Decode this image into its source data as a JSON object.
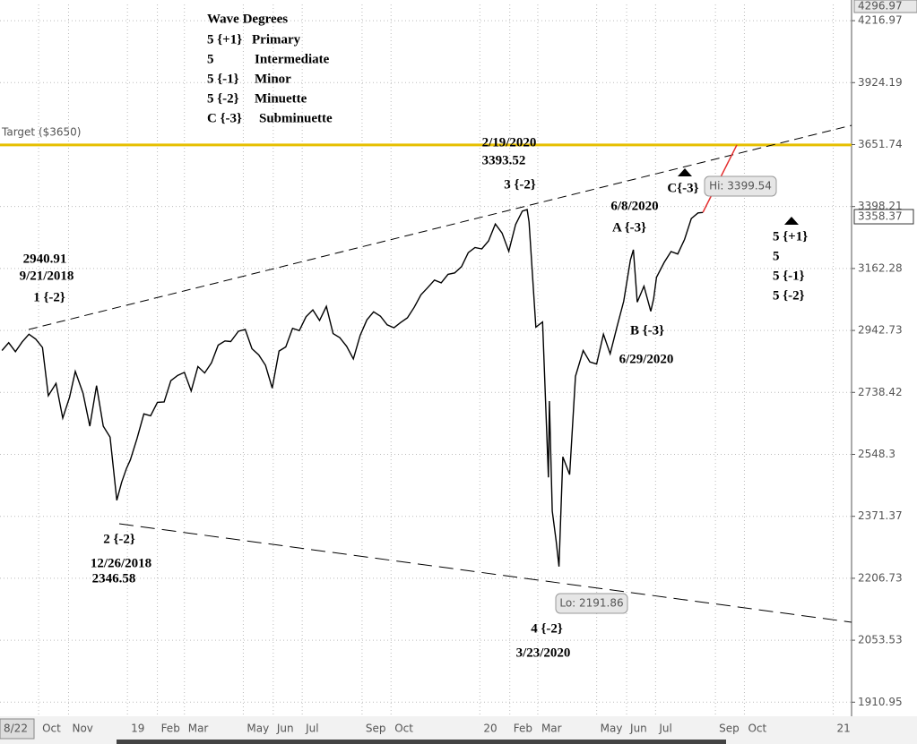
{
  "chart_data": {
    "type": "line",
    "color": "#000000",
    "log_scale": true,
    "grid": true,
    "xlim": [
      "2018-08-22",
      "2021-01-20"
    ],
    "xticks": [
      {
        "value": "2018-08-22",
        "label": "8/22"
      },
      {
        "value": "2018-10-01",
        "label": "Oct"
      },
      {
        "value": "2018-11-01",
        "label": "Nov"
      },
      {
        "value": "2019-01-01",
        "label": "19"
      },
      {
        "value": "2019-02-01",
        "label": "Feb"
      },
      {
        "value": "2019-03-01",
        "label": "Mar"
      },
      {
        "value": "2019-05-01",
        "label": "May"
      },
      {
        "value": "2019-06-01",
        "label": "Jun"
      },
      {
        "value": "2019-07-01",
        "label": "Jul"
      },
      {
        "value": "2019-09-01",
        "label": "Sep"
      },
      {
        "value": "2019-10-01",
        "label": "Oct"
      },
      {
        "value": "2020-01-01",
        "label": "20"
      },
      {
        "value": "2020-02-01",
        "label": "Feb"
      },
      {
        "value": "2020-03-01",
        "label": "Mar"
      },
      {
        "value": "2020-05-01",
        "label": "May"
      },
      {
        "value": "2020-06-01",
        "label": "Jun"
      },
      {
        "value": "2020-07-01",
        "label": "Jul"
      },
      {
        "value": "2020-09-01",
        "label": "Sep"
      },
      {
        "value": "2020-10-01",
        "label": "Oct"
      },
      {
        "value": "2021-01-01",
        "label": "21"
      }
    ],
    "ylim": [
      1880,
      4296.97
    ],
    "yticks": [
      1910.95,
      2053.53,
      2206.73,
      2371.37,
      2548.3,
      2738.42,
      2942.73,
      3162.28,
      3398.21,
      3651.74,
      3924.19,
      4216.97
    ],
    "last_price": 3358.37,
    "target": {
      "label": "Target ($3650)",
      "value": 3650,
      "color": "#e6bf00"
    },
    "x": [
      "2018-08-24",
      "2018-08-31",
      "2018-09-07",
      "2018-09-14",
      "2018-09-21",
      "2018-09-28",
      "2018-10-05",
      "2018-10-11",
      "2018-10-19",
      "2018-10-26",
      "2018-11-02",
      "2018-11-08",
      "2018-11-16",
      "2018-11-23",
      "2018-11-30",
      "2018-12-07",
      "2018-12-14",
      "2018-12-21",
      "2018-12-26",
      "2018-12-31",
      "2019-01-04",
      "2019-01-11",
      "2019-01-18",
      "2019-01-25",
      "2019-02-01",
      "2019-02-08",
      "2019-02-15",
      "2019-02-22",
      "2019-03-01",
      "2019-03-08",
      "2019-03-15",
      "2019-03-22",
      "2019-03-29",
      "2019-04-05",
      "2019-04-12",
      "2019-04-18",
      "2019-04-26",
      "2019-05-03",
      "2019-05-10",
      "2019-05-17",
      "2019-05-24",
      "2019-05-31",
      "2019-06-07",
      "2019-06-14",
      "2019-06-21",
      "2019-06-28",
      "2019-07-05",
      "2019-07-12",
      "2019-07-19",
      "2019-07-26",
      "2019-08-02",
      "2019-08-09",
      "2019-08-16",
      "2019-08-23",
      "2019-08-30",
      "2019-09-06",
      "2019-09-13",
      "2019-09-20",
      "2019-09-27",
      "2019-10-04",
      "2019-10-11",
      "2019-10-18",
      "2019-10-25",
      "2019-11-01",
      "2019-11-08",
      "2019-11-15",
      "2019-11-22",
      "2019-11-29",
      "2019-12-06",
      "2019-12-13",
      "2019-12-20",
      "2019-12-27",
      "2020-01-03",
      "2020-01-10",
      "2020-01-17",
      "2020-01-24",
      "2020-01-31",
      "2020-02-07",
      "2020-02-14",
      "2020-02-19",
      "2020-02-21",
      "2020-02-28",
      "2020-03-06",
      "2020-03-12",
      "2020-03-13",
      "2020-03-16",
      "2020-03-20",
      "2020-03-23",
      "2020-03-27",
      "2020-04-03",
      "2020-04-09",
      "2020-04-17",
      "2020-04-24",
      "2020-05-01",
      "2020-05-08",
      "2020-05-15",
      "2020-05-22",
      "2020-05-29",
      "2020-06-05",
      "2020-06-08",
      "2020-06-12",
      "2020-06-19",
      "2020-06-26",
      "2020-06-29",
      "2020-07-02",
      "2020-07-10",
      "2020-07-17",
      "2020-07-24",
      "2020-07-31",
      "2020-08-07",
      "2020-08-14",
      "2020-08-19"
    ],
    "values": [
      2875,
      2901,
      2871,
      2904,
      2930,
      2913,
      2885,
      2728,
      2767,
      2658,
      2723,
      2806,
      2736,
      2633,
      2760,
      2633,
      2600,
      2416,
      2467,
      2507,
      2532,
      2596,
      2671,
      2665,
      2707,
      2708,
      2776,
      2793,
      2803,
      2743,
      2822,
      2801,
      2834,
      2893,
      2907,
      2905,
      2940,
      2946,
      2881,
      2860,
      2826,
      2752,
      2873,
      2887,
      2950,
      2942,
      2990,
      3014,
      2977,
      3026,
      2932,
      2918,
      2889,
      2847,
      2926,
      2979,
      3007,
      2992,
      2962,
      2952,
      2970,
      2986,
      3023,
      3067,
      3093,
      3120,
      3110,
      3141,
      3146,
      3169,
      3221,
      3240,
      3235,
      3265,
      3330,
      3295,
      3226,
      3328,
      3380,
      3386,
      3338,
      2954,
      2972,
      2481,
      2711,
      2386,
      2305,
      2237,
      2541,
      2489,
      2790,
      2875,
      2837,
      2830,
      2930,
      2864,
      2955,
      3044,
      3194,
      3232,
      3041,
      3098,
      3009,
      3053,
      3130,
      3185,
      3225,
      3216,
      3271,
      3351,
      3373,
      3375
    ],
    "wave_degrees": {
      "title": "Wave Degrees",
      "rows": [
        [
          "5 {+1}",
          "Primary"
        ],
        [
          "5",
          "Intermediate"
        ],
        [
          "5 {-1}",
          "Minor"
        ],
        [
          "5 {-2}",
          "Minuette"
        ],
        [
          "C {-3}",
          "Subminuette"
        ]
      ]
    },
    "annotations": [
      "2/19/2020",
      "3393.52",
      "3 {-2}",
      "2940.91",
      "9/21/2018",
      "1 {-2}",
      "2 {-2}",
      "12/26/2018",
      "2346.58",
      "4 {-2}",
      "3/23/2020",
      "6/8/2020",
      "A {-3}",
      "B {-3}",
      "6/29/2020",
      "C{-3}",
      "5 {+1}",
      "5",
      "5 {-1}",
      "5 {-2}"
    ],
    "hi_label": "Hi: 3399.54",
    "lo_label": "Lo: 2191.86"
  }
}
